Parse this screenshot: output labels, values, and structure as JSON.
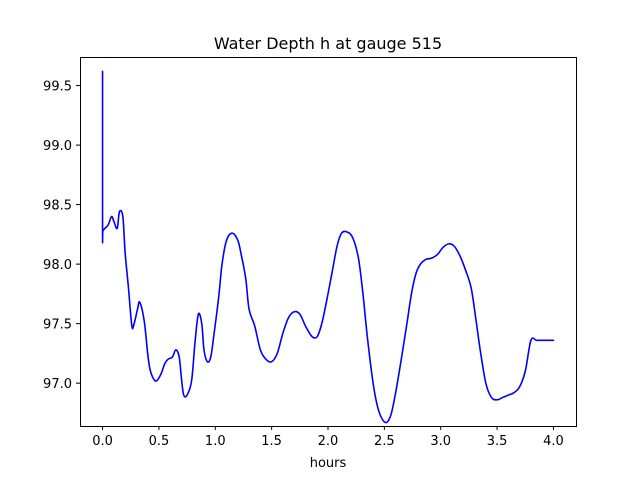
{
  "chart_data": {
    "type": "line",
    "title": "Water Depth h at gauge 515",
    "xlabel": "hours",
    "ylabel": "",
    "xlim": [
      -0.2,
      4.2
    ],
    "ylim": [
      96.64,
      99.74
    ],
    "x_ticks": [
      0.0,
      0.5,
      1.0,
      1.5,
      2.0,
      2.5,
      3.0,
      3.5,
      4.0
    ],
    "x_tick_labels": [
      "0.0",
      "0.5",
      "1.0",
      "1.5",
      "2.0",
      "2.5",
      "3.0",
      "3.5",
      "4.0"
    ],
    "y_ticks": [
      97.0,
      97.5,
      98.0,
      98.5,
      99.0,
      99.5
    ],
    "y_tick_labels": [
      "97.0",
      "97.5",
      "98.0",
      "98.5",
      "99.0",
      "99.5"
    ],
    "grid": false,
    "series": [
      {
        "color": "#0000ff",
        "x": [
          0.0,
          0.0,
          0.003,
          0.02,
          0.05,
          0.08,
          0.1,
          0.13,
          0.15,
          0.18,
          0.2,
          0.23,
          0.26,
          0.28,
          0.31,
          0.33,
          0.37,
          0.4,
          0.42,
          0.45,
          0.48,
          0.52,
          0.55,
          0.58,
          0.62,
          0.65,
          0.68,
          0.7,
          0.72,
          0.75,
          0.79,
          0.82,
          0.85,
          0.88,
          0.9,
          0.93,
          0.96,
          0.99,
          1.03,
          1.06,
          1.1,
          1.15,
          1.2,
          1.23,
          1.27,
          1.3,
          1.35,
          1.4,
          1.45,
          1.5,
          1.55,
          1.6,
          1.65,
          1.7,
          1.75,
          1.8,
          1.85,
          1.88,
          1.91,
          1.95,
          2.0,
          2.04,
          2.08,
          2.12,
          2.17,
          2.22,
          2.27,
          2.31,
          2.35,
          2.4,
          2.44,
          2.48,
          2.52,
          2.56,
          2.6,
          2.65,
          2.7,
          2.74,
          2.78,
          2.82,
          2.87,
          2.92,
          2.97,
          3.02,
          3.07,
          3.12,
          3.17,
          3.22,
          3.27,
          3.31,
          3.35,
          3.4,
          3.45,
          3.5,
          3.55,
          3.6,
          3.65,
          3.7,
          3.75,
          3.8,
          3.85,
          3.9,
          3.95,
          4.0
        ],
        "y": [
          99.62,
          98.28,
          98.28,
          98.3,
          98.33,
          98.4,
          98.36,
          98.3,
          98.44,
          98.4,
          98.1,
          97.8,
          97.48,
          97.5,
          97.62,
          97.68,
          97.52,
          97.25,
          97.12,
          97.04,
          97.02,
          97.08,
          97.16,
          97.2,
          97.22,
          97.28,
          97.22,
          97.04,
          96.9,
          96.9,
          97.02,
          97.34,
          97.58,
          97.5,
          97.28,
          97.18,
          97.22,
          97.42,
          97.72,
          98.0,
          98.2,
          98.26,
          98.2,
          98.08,
          97.88,
          97.62,
          97.48,
          97.28,
          97.2,
          97.18,
          97.25,
          97.42,
          97.55,
          97.6,
          97.58,
          97.48,
          97.4,
          97.38,
          97.4,
          97.52,
          97.75,
          97.95,
          98.15,
          98.26,
          98.27,
          98.22,
          98.05,
          97.75,
          97.38,
          97.0,
          96.8,
          96.7,
          96.67,
          96.74,
          96.92,
          97.2,
          97.5,
          97.75,
          97.92,
          98.0,
          98.04,
          98.05,
          98.08,
          98.14,
          98.17,
          98.15,
          98.07,
          97.95,
          97.8,
          97.55,
          97.28,
          97.0,
          96.88,
          96.86,
          96.88,
          96.9,
          96.92,
          96.97,
          97.1,
          97.36,
          97.36,
          97.36,
          97.36,
          97.36
        ]
      }
    ]
  }
}
